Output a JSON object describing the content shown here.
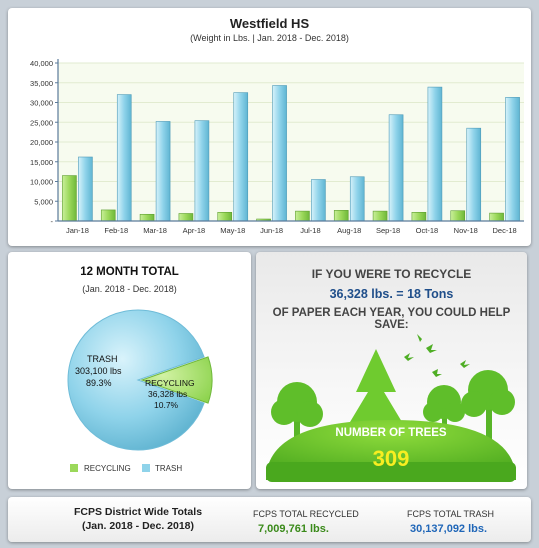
{
  "top_chart": {
    "title": "Westfield HS",
    "subtitle": "(Weight in Lbs. | Jan. 2018 - Dec. 2018)"
  },
  "twelve_month": {
    "title": "12 MONTH TOTAL",
    "subtitle": "(Jan. 2018 - Dec. 2018)",
    "trash_label": "TRASH",
    "trash_value": "303,100 lbs",
    "trash_pct": "89.3%",
    "recycling_label": "RECYCLING",
    "recycling_value": "36,328 lbs",
    "recycling_pct": "10.7%",
    "legend": [
      "RECYCLING",
      "TRASH"
    ]
  },
  "trees": {
    "line1": "IF YOU WERE TO RECYCLE",
    "line2": "36,328 lbs. = 18 Tons",
    "line3": "OF PAPER EACH YEAR, YOU COULD HELP SAVE:",
    "label": "NUMBER OF TREES",
    "value": "309"
  },
  "footer": {
    "title": "FCPS District Wide Totals",
    "subtitle": "(Jan. 2018 - Dec. 2018)",
    "recycled_label": "FCPS TOTAL RECYCLED",
    "recycled_value": "7,009,761 lbs.",
    "trash_label": "FCPS TOTAL TRASH",
    "trash_value": "30,137,092 lbs."
  },
  "colors": {
    "recycling": "#9bd85a",
    "trash": "#8fd3ea",
    "recycled_text": "#3a8a1a",
    "trash_text": "#1f66b8"
  },
  "chart_data": [
    {
      "type": "bar",
      "categories": [
        "Jan-18",
        "Feb-18",
        "Mar-18",
        "Apr-18",
        "May-18",
        "Jun-18",
        "Jul-18",
        "Aug-18",
        "Sep-18",
        "Oct-18",
        "Nov-18",
        "Dec-18"
      ],
      "series": [
        {
          "values": [
            11500,
            2800,
            1700,
            1900,
            2200,
            500,
            2500,
            2700,
            2500,
            2200,
            2600,
            2000
          ]
        },
        {
          "values": [
            16200,
            32000,
            25200,
            25400,
            32500,
            34300,
            10500,
            11200,
            26900,
            33900,
            23500,
            31300
          ]
        }
      ],
      "yticks": [
        "-",
        "5,000",
        "10,000",
        "15,000",
        "20,000",
        "25,000",
        "30,000",
        "35,000",
        "40,000"
      ],
      "ylim": [
        0,
        40000
      ],
      "grid": true
    },
    {
      "type": "pie",
      "slices": [
        {
          "label": "TRASH",
          "value": 303100
        },
        {
          "label": "RECYCLING",
          "value": 36328
        }
      ]
    }
  ]
}
